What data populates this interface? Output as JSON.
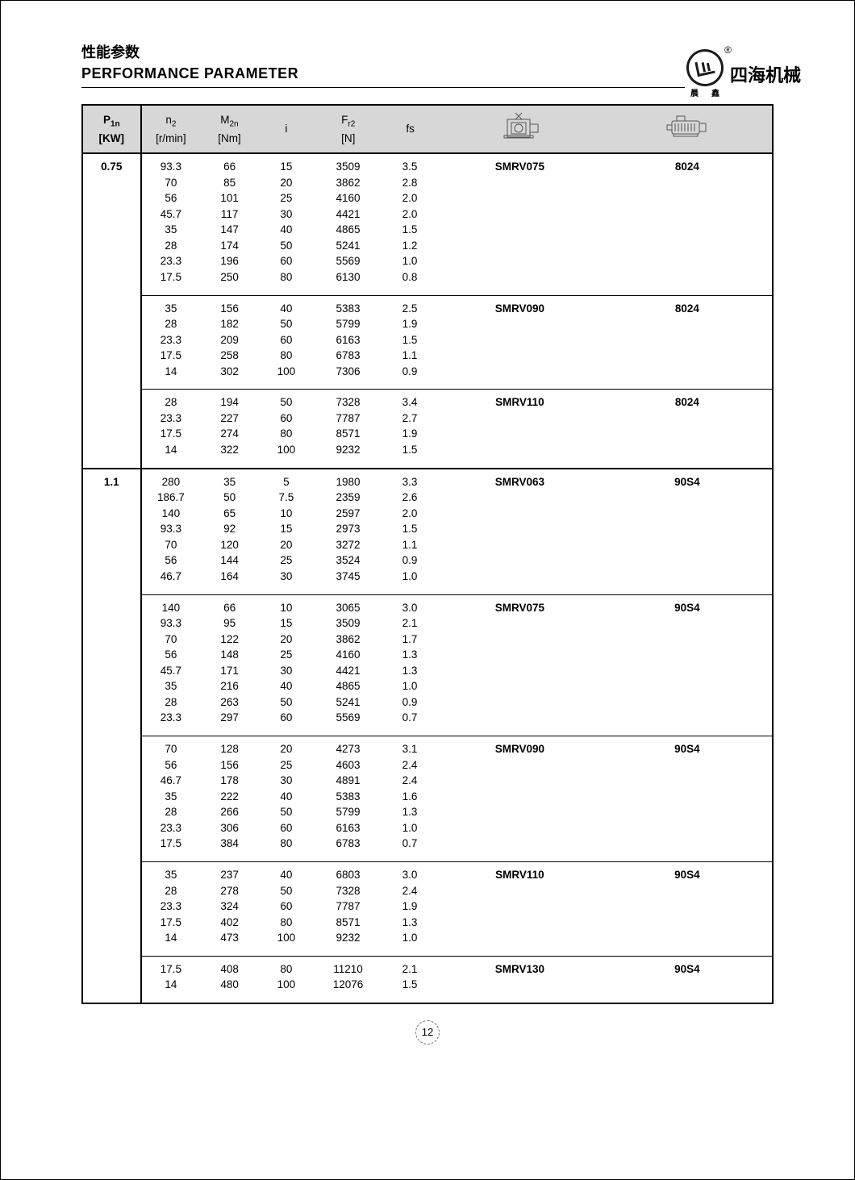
{
  "header": {
    "title_cn": "性能参数",
    "title_en": "PERFORMANCE PARAMETER",
    "brand_cn": "四海机械",
    "brand_sub_a": "晨",
    "brand_sub_b": "鑫",
    "reg": "®"
  },
  "columns": {
    "p1n_l1": "P",
    "p1n_s1": "1n",
    "p1n_u": "[KW]",
    "n2_l1": "n",
    "n2_s1": "2",
    "n2_u": "[r/min]",
    "m2n_l1": "M",
    "m2n_s1": "2n",
    "m2n_u": "[Nm]",
    "i": "i",
    "fr2_l1": "F",
    "fr2_s1": "r2",
    "fr2_u": "[N]",
    "fs": "fs"
  },
  "page_number": "12",
  "powers": [
    {
      "power": "0.75",
      "groups": [
        {
          "model": "SMRV075",
          "motor": "8024",
          "rows": [
            {
              "n2": "93.3",
              "m2n": "66",
              "i": "15",
              "fr2": "3509",
              "fs": "3.5"
            },
            {
              "n2": "70",
              "m2n": "85",
              "i": "20",
              "fr2": "3862",
              "fs": "2.8"
            },
            {
              "n2": "56",
              "m2n": "101",
              "i": "25",
              "fr2": "4160",
              "fs": "2.0"
            },
            {
              "n2": "45.7",
              "m2n": "117",
              "i": "30",
              "fr2": "4421",
              "fs": "2.0"
            },
            {
              "n2": "35",
              "m2n": "147",
              "i": "40",
              "fr2": "4865",
              "fs": "1.5"
            },
            {
              "n2": "28",
              "m2n": "174",
              "i": "50",
              "fr2": "5241",
              "fs": "1.2"
            },
            {
              "n2": "23.3",
              "m2n": "196",
              "i": "60",
              "fr2": "5569",
              "fs": "1.0"
            },
            {
              "n2": "17.5",
              "m2n": "250",
              "i": "80",
              "fr2": "6130",
              "fs": "0.8"
            }
          ]
        },
        {
          "model": "SMRV090",
          "motor": "8024",
          "rows": [
            {
              "n2": "35",
              "m2n": "156",
              "i": "40",
              "fr2": "5383",
              "fs": "2.5"
            },
            {
              "n2": "28",
              "m2n": "182",
              "i": "50",
              "fr2": "5799",
              "fs": "1.9"
            },
            {
              "n2": "23.3",
              "m2n": "209",
              "i": "60",
              "fr2": "6163",
              "fs": "1.5"
            },
            {
              "n2": "17.5",
              "m2n": "258",
              "i": "80",
              "fr2": "6783",
              "fs": "1.1"
            },
            {
              "n2": "14",
              "m2n": "302",
              "i": "100",
              "fr2": "7306",
              "fs": "0.9"
            }
          ]
        },
        {
          "model": "SMRV110",
          "motor": "8024",
          "rows": [
            {
              "n2": "28",
              "m2n": "194",
              "i": "50",
              "fr2": "7328",
              "fs": "3.4"
            },
            {
              "n2": "23.3",
              "m2n": "227",
              "i": "60",
              "fr2": "7787",
              "fs": "2.7"
            },
            {
              "n2": "17.5",
              "m2n": "274",
              "i": "80",
              "fr2": "8571",
              "fs": "1.9"
            },
            {
              "n2": "14",
              "m2n": "322",
              "i": "100",
              "fr2": "9232",
              "fs": "1.5"
            }
          ]
        }
      ]
    },
    {
      "power": "1.1",
      "groups": [
        {
          "model": "SMRV063",
          "motor": "90S4",
          "rows": [
            {
              "n2": "280",
              "m2n": "35",
              "i": "5",
              "fr2": "1980",
              "fs": "3.3"
            },
            {
              "n2": "186.7",
              "m2n": "50",
              "i": "7.5",
              "fr2": "2359",
              "fs": "2.6"
            },
            {
              "n2": "140",
              "m2n": "65",
              "i": "10",
              "fr2": "2597",
              "fs": "2.0"
            },
            {
              "n2": "93.3",
              "m2n": "92",
              "i": "15",
              "fr2": "2973",
              "fs": "1.5"
            },
            {
              "n2": "70",
              "m2n": "120",
              "i": "20",
              "fr2": "3272",
              "fs": "1.1"
            },
            {
              "n2": "56",
              "m2n": "144",
              "i": "25",
              "fr2": "3524",
              "fs": "0.9"
            },
            {
              "n2": "46.7",
              "m2n": "164",
              "i": "30",
              "fr2": "3745",
              "fs": "1.0"
            }
          ]
        },
        {
          "model": "SMRV075",
          "motor": "90S4",
          "rows": [
            {
              "n2": "140",
              "m2n": "66",
              "i": "10",
              "fr2": "3065",
              "fs": "3.0"
            },
            {
              "n2": "93.3",
              "m2n": "95",
              "i": "15",
              "fr2": "3509",
              "fs": "2.1"
            },
            {
              "n2": "70",
              "m2n": "122",
              "i": "20",
              "fr2": "3862",
              "fs": "1.7"
            },
            {
              "n2": "56",
              "m2n": "148",
              "i": "25",
              "fr2": "4160",
              "fs": "1.3"
            },
            {
              "n2": "45.7",
              "m2n": "171",
              "i": "30",
              "fr2": "4421",
              "fs": "1.3"
            },
            {
              "n2": "35",
              "m2n": "216",
              "i": "40",
              "fr2": "4865",
              "fs": "1.0"
            },
            {
              "n2": "28",
              "m2n": "263",
              "i": "50",
              "fr2": "5241",
              "fs": "0.9"
            },
            {
              "n2": "23.3",
              "m2n": "297",
              "i": "60",
              "fr2": "5569",
              "fs": "0.7"
            }
          ]
        },
        {
          "model": "SMRV090",
          "motor": "90S4",
          "rows": [
            {
              "n2": "70",
              "m2n": "128",
              "i": "20",
              "fr2": "4273",
              "fs": "3.1"
            },
            {
              "n2": "56",
              "m2n": "156",
              "i": "25",
              "fr2": "4603",
              "fs": "2.4"
            },
            {
              "n2": "46.7",
              "m2n": "178",
              "i": "30",
              "fr2": "4891",
              "fs": "2.4"
            },
            {
              "n2": "35",
              "m2n": "222",
              "i": "40",
              "fr2": "5383",
              "fs": "1.6"
            },
            {
              "n2": "28",
              "m2n": "266",
              "i": "50",
              "fr2": "5799",
              "fs": "1.3"
            },
            {
              "n2": "23.3",
              "m2n": "306",
              "i": "60",
              "fr2": "6163",
              "fs": "1.0"
            },
            {
              "n2": "17.5",
              "m2n": "384",
              "i": "80",
              "fr2": "6783",
              "fs": "0.7"
            }
          ]
        },
        {
          "model": "SMRV110",
          "motor": "90S4",
          "rows": [
            {
              "n2": "35",
              "m2n": "237",
              "i": "40",
              "fr2": "6803",
              "fs": "3.0"
            },
            {
              "n2": "28",
              "m2n": "278",
              "i": "50",
              "fr2": "7328",
              "fs": "2.4"
            },
            {
              "n2": "23.3",
              "m2n": "324",
              "i": "60",
              "fr2": "7787",
              "fs": "1.9"
            },
            {
              "n2": "17.5",
              "m2n": "402",
              "i": "80",
              "fr2": "8571",
              "fs": "1.3"
            },
            {
              "n2": "14",
              "m2n": "473",
              "i": "100",
              "fr2": "9232",
              "fs": "1.0"
            }
          ]
        },
        {
          "model": "SMRV130",
          "motor": "90S4",
          "rows": [
            {
              "n2": "17.5",
              "m2n": "408",
              "i": "80",
              "fr2": "11210",
              "fs": "2.1"
            },
            {
              "n2": "14",
              "m2n": "480",
              "i": "100",
              "fr2": "12076",
              "fs": "1.5"
            }
          ]
        }
      ]
    }
  ]
}
